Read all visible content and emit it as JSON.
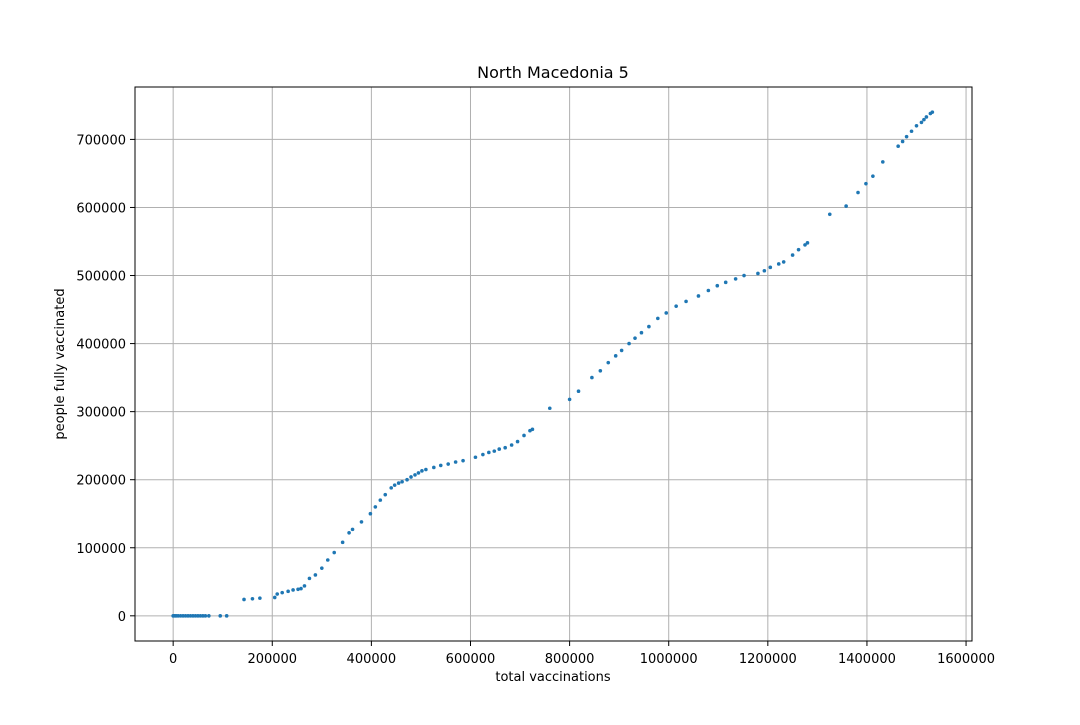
{
  "chart_data": {
    "type": "scatter",
    "title": "North Macedonia 5",
    "xlabel": "total vaccinations",
    "ylabel": "people fully vaccinated",
    "xlim": [
      -77000,
      1612000
    ],
    "ylim": [
      -37000,
      777000
    ],
    "xticks": [
      0,
      200000,
      400000,
      600000,
      800000,
      1000000,
      1200000,
      1400000,
      1600000
    ],
    "yticks": [
      0,
      100000,
      200000,
      300000,
      400000,
      500000,
      600000,
      700000
    ],
    "grid": true,
    "legend": "none",
    "marker_color": "#1f77b4",
    "series": [
      {
        "points": [
          [
            0,
            0
          ],
          [
            3000,
            0
          ],
          [
            6000,
            0
          ],
          [
            10000,
            0
          ],
          [
            15000,
            0
          ],
          [
            20000,
            0
          ],
          [
            25000,
            0
          ],
          [
            30000,
            0
          ],
          [
            35000,
            0
          ],
          [
            40000,
            0
          ],
          [
            45000,
            0
          ],
          [
            50000,
            0
          ],
          [
            55000,
            0
          ],
          [
            60000,
            0
          ],
          [
            65000,
            0
          ],
          [
            72000,
            0
          ],
          [
            95000,
            0
          ],
          [
            108000,
            0
          ],
          [
            143000,
            24000
          ],
          [
            160000,
            25000
          ],
          [
            175000,
            26000
          ],
          [
            205000,
            27000
          ],
          [
            210000,
            32000
          ],
          [
            220000,
            34000
          ],
          [
            232000,
            36000
          ],
          [
            242000,
            38000
          ],
          [
            252000,
            39000
          ],
          [
            258000,
            40000
          ],
          [
            265000,
            44000
          ],
          [
            275000,
            55000
          ],
          [
            287000,
            60000
          ],
          [
            300000,
            70000
          ],
          [
            312000,
            82000
          ],
          [
            325000,
            93000
          ],
          [
            342000,
            108000
          ],
          [
            355000,
            122000
          ],
          [
            362000,
            127000
          ],
          [
            380000,
            138000
          ],
          [
            398000,
            150000
          ],
          [
            408000,
            160000
          ],
          [
            418000,
            170000
          ],
          [
            428000,
            178000
          ],
          [
            440000,
            188000
          ],
          [
            447000,
            192000
          ],
          [
            455000,
            195000
          ],
          [
            462000,
            197000
          ],
          [
            472000,
            200000
          ],
          [
            480000,
            204000
          ],
          [
            488000,
            207000
          ],
          [
            495000,
            210000
          ],
          [
            502000,
            213000
          ],
          [
            510000,
            215000
          ],
          [
            526000,
            218000
          ],
          [
            540000,
            221000
          ],
          [
            555000,
            223000
          ],
          [
            570000,
            226000
          ],
          [
            585000,
            228000
          ],
          [
            610000,
            233000
          ],
          [
            625000,
            237000
          ],
          [
            637000,
            240000
          ],
          [
            648000,
            242000
          ],
          [
            658000,
            245000
          ],
          [
            670000,
            247000
          ],
          [
            683000,
            251000
          ],
          [
            695000,
            256000
          ],
          [
            708000,
            265000
          ],
          [
            720000,
            272000
          ],
          [
            725000,
            274000
          ],
          [
            760000,
            305000
          ],
          [
            800000,
            318000
          ],
          [
            818000,
            330000
          ],
          [
            845000,
            350000
          ],
          [
            862000,
            360000
          ],
          [
            878000,
            372000
          ],
          [
            893000,
            382000
          ],
          [
            905000,
            390000
          ],
          [
            920000,
            400000
          ],
          [
            932000,
            408000
          ],
          [
            945000,
            416000
          ],
          [
            960000,
            425000
          ],
          [
            978000,
            437000
          ],
          [
            995000,
            445000
          ],
          [
            1015000,
            455000
          ],
          [
            1035000,
            462000
          ],
          [
            1060000,
            470000
          ],
          [
            1080000,
            478000
          ],
          [
            1098000,
            485000
          ],
          [
            1115000,
            490000
          ],
          [
            1135000,
            495000
          ],
          [
            1152000,
            500000
          ],
          [
            1180000,
            503000
          ],
          [
            1193000,
            507000
          ],
          [
            1205000,
            512000
          ],
          [
            1222000,
            517000
          ],
          [
            1232000,
            520000
          ],
          [
            1250000,
            530000
          ],
          [
            1262000,
            538000
          ],
          [
            1275000,
            545000
          ],
          [
            1280000,
            548000
          ],
          [
            1325000,
            590000
          ],
          [
            1358000,
            602000
          ],
          [
            1382000,
            622000
          ],
          [
            1398000,
            635000
          ],
          [
            1412000,
            646000
          ],
          [
            1432000,
            667000
          ],
          [
            1463000,
            690000
          ],
          [
            1472000,
            697000
          ],
          [
            1480000,
            704000
          ],
          [
            1490000,
            712000
          ],
          [
            1500000,
            720000
          ],
          [
            1510000,
            725000
          ],
          [
            1515000,
            729000
          ],
          [
            1520000,
            733000
          ],
          [
            1528000,
            738000
          ],
          [
            1532000,
            740000
          ]
        ]
      }
    ]
  }
}
